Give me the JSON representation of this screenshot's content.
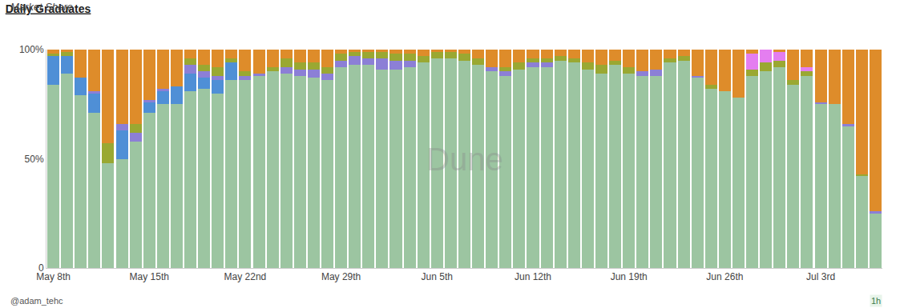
{
  "chart_data": {
    "type": "bar",
    "title": "Daily Graduates",
    "subtitle": "Market Share",
    "author": "@adam_tehc",
    "refresh": "1h",
    "watermark": "Dune",
    "stacked": true,
    "grid": false,
    "categories": [
      "May 8th",
      null,
      null,
      null,
      null,
      null,
      null,
      "May 15th",
      null,
      null,
      null,
      null,
      null,
      null,
      "May 22nd",
      null,
      null,
      null,
      null,
      null,
      null,
      "May 29th",
      null,
      null,
      null,
      null,
      null,
      null,
      "Jun 5th",
      null,
      null,
      null,
      null,
      null,
      null,
      "Jun 12th",
      null,
      null,
      null,
      null,
      null,
      null,
      "Jun 19th",
      null,
      null,
      null,
      null,
      null,
      null,
      "Jun 26th",
      null,
      null,
      null,
      null,
      null,
      null,
      "Jul 3rd",
      null,
      null,
      null,
      null
    ],
    "ylim": [
      0,
      100
    ],
    "yticks": [
      0,
      {
        "value": 50,
        "label": "50%"
      },
      {
        "value": 100,
        "label": "100%"
      }
    ],
    "series": [
      {
        "color": "#9cc5a1",
        "values": [
          84,
          89,
          79,
          71,
          48,
          50,
          58,
          71,
          75,
          75,
          81,
          82,
          80,
          86,
          86,
          88,
          90,
          89,
          88,
          87,
          86,
          92,
          93,
          93,
          91,
          91,
          92,
          94,
          96,
          96,
          95,
          93,
          90,
          88,
          91,
          92,
          92,
          95,
          94,
          91,
          89,
          93,
          89,
          88,
          88,
          94,
          95,
          87,
          82,
          81,
          78,
          88,
          90,
          92,
          84,
          88,
          75,
          75,
          65,
          42,
          25
        ]
      },
      {
        "color": "#4f8fd6",
        "values": [
          13,
          8,
          8,
          9,
          0,
          13,
          0,
          5,
          6,
          8,
          8,
          5,
          6,
          8,
          0,
          0,
          0,
          0,
          0,
          0,
          0,
          0,
          0,
          0,
          0,
          0,
          0,
          0,
          0,
          0,
          0,
          0,
          0,
          0,
          0,
          0,
          0,
          0,
          0,
          0,
          0,
          0,
          0,
          0,
          0,
          0,
          0,
          0,
          0,
          0,
          0,
          0,
          0,
          0,
          0,
          0,
          0,
          0,
          0,
          0,
          0
        ]
      },
      {
        "color": "#8c7fd6",
        "values": [
          0,
          0,
          0,
          1,
          0,
          3,
          4,
          1,
          1,
          0,
          4,
          3,
          2,
          0,
          2,
          1,
          0,
          3,
          3,
          4,
          3,
          3,
          4,
          3,
          5,
          4,
          3,
          0,
          0,
          0,
          0,
          0,
          2,
          2,
          0,
          2,
          2,
          0,
          0,
          0,
          0,
          0,
          0,
          2,
          3,
          0,
          0,
          1,
          0,
          0,
          0,
          0,
          0,
          0,
          0,
          0,
          1,
          0,
          1,
          0,
          1
        ]
      },
      {
        "color": "#9aa832",
        "values": [
          1,
          2,
          0,
          0,
          9,
          0,
          4,
          0,
          0,
          0,
          3,
          3,
          4,
          2,
          2,
          0,
          2,
          4,
          3,
          3,
          3,
          3,
          2,
          3,
          3,
          3,
          3,
          3,
          3,
          3,
          3,
          3,
          0,
          2,
          3,
          2,
          2,
          2,
          2,
          3,
          4,
          2,
          3,
          0,
          0,
          2,
          2,
          0,
          2,
          0,
          0,
          3,
          4,
          3,
          2,
          2,
          0,
          0,
          0,
          1,
          0
        ]
      },
      {
        "color": "#e47ef0",
        "values": [
          0,
          0,
          0,
          0,
          0,
          0,
          0,
          0,
          0,
          0,
          0,
          0,
          0,
          0,
          0,
          0,
          0,
          0,
          0,
          0,
          0,
          0,
          0,
          0,
          0,
          0,
          0,
          0,
          0,
          0,
          0,
          0,
          0,
          0,
          0,
          0,
          0,
          0,
          0,
          0,
          0,
          0,
          0,
          0,
          0,
          0,
          0,
          0,
          0,
          0,
          0,
          7,
          6,
          4,
          0,
          2,
          0,
          0,
          0,
          0,
          0
        ]
      },
      {
        "color": "#de8c2a",
        "values": [
          2,
          1,
          13,
          19,
          43,
          34,
          34,
          23,
          18,
          17,
          4,
          7,
          8,
          4,
          10,
          11,
          8,
          4,
          6,
          6,
          8,
          2,
          1,
          1,
          1,
          2,
          2,
          3,
          1,
          1,
          2,
          4,
          8,
          8,
          6,
          4,
          4,
          3,
          4,
          6,
          7,
          5,
          8,
          10,
          9,
          4,
          3,
          12,
          16,
          19,
          22,
          2,
          0,
          1,
          14,
          8,
          24,
          25,
          34,
          57,
          74
        ]
      }
    ]
  }
}
